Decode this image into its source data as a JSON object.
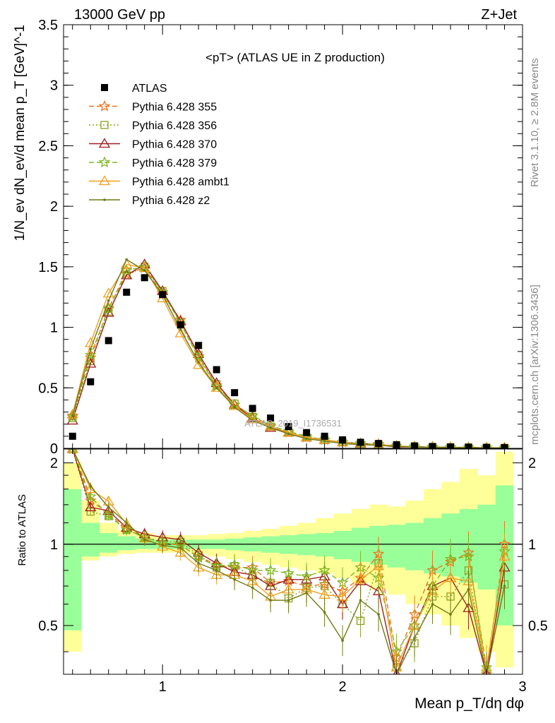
{
  "header": {
    "left": "13000 GeV pp",
    "right": "Z+Jet"
  },
  "side_text": {
    "top": "Rivet 3.1.10, ≥ 2.8M events",
    "bottom": "mcplots.cern.ch [arXiv:1306.3436]"
  },
  "chart_data": {
    "type": "line",
    "title": "<pT> (ATLAS UE in Z production)",
    "watermark": "ATLAS_2019_I1736531",
    "xlabel": "Mean p_T/dη dφ",
    "ylabel": "1/N_ev dN_ev/d mean p_T [GeV]^-1",
    "ratio_ylabel": "Ratio to ATLAS",
    "xlim": [
      0.45,
      3.0
    ],
    "ylim": [
      0,
      3.5
    ],
    "ratio_ylim": [
      0.33,
      2.25
    ],
    "x_ticks": [
      "1",
      "2",
      "3"
    ],
    "y_ticks": [
      "0",
      "0.5",
      "1",
      "1.5",
      "2",
      "2.5",
      "3",
      "3.5"
    ],
    "ratio_ticks": [
      "0.5",
      "1",
      "2"
    ],
    "x": [
      0.5,
      0.6,
      0.7,
      0.8,
      0.9,
      1.0,
      1.1,
      1.2,
      1.3,
      1.4,
      1.5,
      1.6,
      1.7,
      1.8,
      1.9,
      2.0,
      2.1,
      2.2,
      2.3,
      2.4,
      2.5,
      2.6,
      2.7,
      2.8,
      2.9
    ],
    "ATLAS": [
      0.1,
      0.55,
      0.89,
      1.29,
      1.41,
      1.27,
      1.02,
      0.85,
      0.65,
      0.46,
      0.33,
      0.25,
      0.18,
      0.13,
      0.1,
      0.07,
      0.05,
      0.04,
      0.03,
      0.02,
      0.015,
      0.012,
      0.01,
      0.008,
      0.006
    ],
    "bands": {
      "inner_up": [
        1.6,
        1.2,
        1.1,
        1.07,
        1.05,
        1.04,
        1.04,
        1.04,
        1.04,
        1.05,
        1.06,
        1.07,
        1.08,
        1.09,
        1.1,
        1.12,
        1.15,
        1.17,
        1.18,
        1.2,
        1.25,
        1.3,
        1.35,
        1.4,
        1.65
      ],
      "inner_dn": [
        0.48,
        0.9,
        0.93,
        0.95,
        0.96,
        0.96,
        0.96,
        0.96,
        0.96,
        0.95,
        0.94,
        0.93,
        0.92,
        0.91,
        0.9,
        0.88,
        0.86,
        0.84,
        0.82,
        0.8,
        0.78,
        0.76,
        0.72,
        0.68,
        0.5
      ],
      "outer_up": [
        2.0,
        1.45,
        1.2,
        1.13,
        1.1,
        1.08,
        1.08,
        1.08,
        1.09,
        1.1,
        1.12,
        1.14,
        1.17,
        1.2,
        1.25,
        1.3,
        1.35,
        1.4,
        1.38,
        1.45,
        1.6,
        1.7,
        1.9,
        1.8,
        2.2
      ],
      "outer_dn": [
        0.4,
        0.87,
        0.9,
        0.92,
        0.93,
        0.93,
        0.93,
        0.92,
        0.9,
        0.88,
        0.86,
        0.84,
        0.82,
        0.8,
        0.78,
        0.75,
        0.72,
        0.68,
        0.65,
        0.6,
        0.55,
        0.5,
        0.45,
        0.4,
        0.35
      ]
    },
    "series": [
      {
        "name": "Pythia 6.428 355",
        "color": "#f07420",
        "marker": "star",
        "dash": "7,4",
        "values": [
          0.27,
          0.75,
          1.16,
          1.44,
          1.49,
          1.28,
          1.06,
          0.76,
          0.52,
          0.36,
          0.27,
          0.18,
          0.13,
          0.09,
          0.07,
          0.05,
          0.04,
          0.035,
          0.02,
          0.015,
          0.012,
          0.01,
          0.008,
          0.006,
          0.005
        ],
        "ratio": [
          2.4,
          1.45,
          1.3,
          1.14,
          1.06,
          1.01,
          0.99,
          0.9,
          0.84,
          0.82,
          0.82,
          0.72,
          0.73,
          0.7,
          0.71,
          0.67,
          0.75,
          0.92,
          0.38,
          0.55,
          0.8,
          0.86,
          0.93,
          0.3,
          1.0
        ]
      },
      {
        "name": "Pythia 6.428 356",
        "color": "#8ca01c",
        "marker": "square",
        "dash": "2,3",
        "values": [
          0.25,
          0.72,
          1.13,
          1.43,
          1.5,
          1.3,
          1.04,
          0.77,
          0.53,
          0.37,
          0.26,
          0.18,
          0.13,
          0.09,
          0.07,
          0.05,
          0.03,
          0.03,
          0.01,
          0.012,
          0.01,
          0.008,
          0.006,
          0.005,
          0.004
        ],
        "ratio": [
          2.35,
          1.32,
          1.27,
          1.13,
          1.06,
          1.02,
          1.02,
          0.91,
          0.82,
          0.83,
          0.76,
          0.72,
          0.63,
          0.69,
          0.7,
          0.6,
          0.52,
          0.85,
          0.35,
          0.43,
          0.64,
          0.64,
          0.8,
          0.28,
          0.71
        ]
      },
      {
        "name": "Pythia 6.428 370",
        "color": "#a01f1f",
        "marker": "triangle-open",
        "dash": "",
        "values": [
          0.23,
          0.7,
          1.12,
          1.43,
          1.52,
          1.3,
          1.05,
          0.78,
          0.54,
          0.36,
          0.25,
          0.17,
          0.13,
          0.09,
          0.07,
          0.05,
          0.04,
          0.03,
          0.01,
          0.012,
          0.01,
          0.008,
          0.006,
          0.005,
          0.004
        ],
        "ratio": [
          2.3,
          1.37,
          1.33,
          1.15,
          1.09,
          1.06,
          1.04,
          0.93,
          0.85,
          0.79,
          0.77,
          0.7,
          0.74,
          0.74,
          0.76,
          0.6,
          0.73,
          0.67,
          0.3,
          0.5,
          0.7,
          0.75,
          0.58,
          0.3,
          0.82
        ]
      },
      {
        "name": "Pythia 6.428 379",
        "color": "#7cb820",
        "marker": "star",
        "dash": "7,4",
        "values": [
          0.26,
          0.77,
          1.15,
          1.47,
          1.5,
          1.29,
          1.03,
          0.75,
          0.51,
          0.36,
          0.27,
          0.19,
          0.14,
          0.1,
          0.07,
          0.05,
          0.04,
          0.03,
          0.02,
          0.013,
          0.01,
          0.009,
          0.007,
          0.005,
          0.004
        ],
        "ratio": [
          2.3,
          1.5,
          1.28,
          1.13,
          1.06,
          1.01,
          1.0,
          0.89,
          0.83,
          0.84,
          0.8,
          0.8,
          0.78,
          0.76,
          0.8,
          0.72,
          0.82,
          0.75,
          0.4,
          0.5,
          0.7,
          0.88,
          0.9,
          0.35,
          0.94
        ]
      },
      {
        "name": "Pythia 6.428 ambt1",
        "color": "#f0a020",
        "marker": "triangle-open",
        "dash": "",
        "values": [
          0.28,
          0.87,
          1.28,
          1.52,
          1.49,
          1.24,
          0.95,
          0.69,
          0.5,
          0.35,
          0.24,
          0.18,
          0.13,
          0.09,
          0.07,
          0.05,
          0.03,
          0.03,
          0.02,
          0.01,
          0.008,
          0.007,
          0.005,
          0.004,
          0.003
        ],
        "ratio": [
          2.5,
          1.6,
          1.44,
          1.19,
          1.05,
          0.98,
          0.93,
          0.82,
          0.77,
          0.77,
          0.73,
          0.64,
          0.68,
          0.68,
          0.65,
          0.64,
          0.74,
          0.83,
          0.35,
          0.5,
          0.67,
          0.75,
          0.73,
          0.35,
          0.9
        ]
      },
      {
        "name": "Pythia 6.428 z2",
        "color": "#6e7a14",
        "marker": "dot",
        "dash": "",
        "values": [
          0.27,
          0.82,
          1.22,
          1.56,
          1.47,
          1.27,
          0.98,
          0.71,
          0.5,
          0.34,
          0.23,
          0.17,
          0.12,
          0.08,
          0.06,
          0.04,
          0.03,
          0.025,
          0.015,
          0.01,
          0.008,
          0.007,
          0.005,
          0.004,
          0.003
        ],
        "ratio": [
          2.45,
          1.64,
          1.37,
          1.2,
          1.04,
          0.99,
          0.97,
          0.85,
          0.8,
          0.74,
          0.69,
          0.62,
          0.62,
          0.66,
          0.56,
          0.44,
          0.62,
          0.55,
          0.3,
          0.45,
          0.6,
          0.55,
          0.68,
          0.28,
          0.7
        ]
      }
    ]
  }
}
